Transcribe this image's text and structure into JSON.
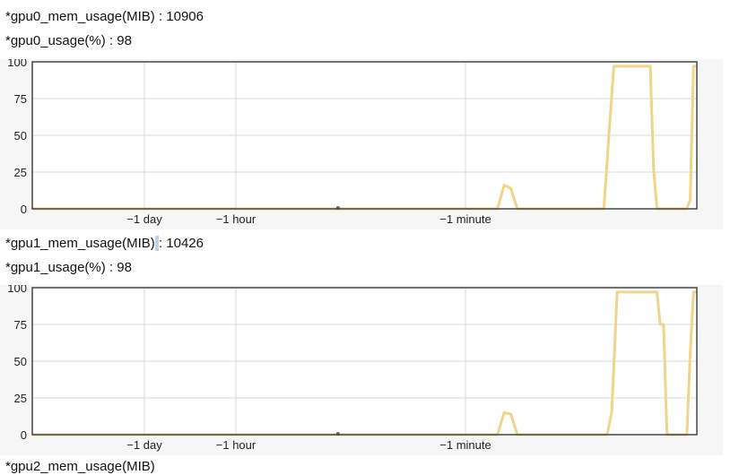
{
  "stats": {
    "gpu0_mem": "*gpu0_mem_usage(MIB) : 10906",
    "gpu0_usage": "*gpu0_usage(%) : 98",
    "gpu1_mem_a": "*gpu1_mem_usage(MIB)",
    "gpu1_mem_sel": " ",
    "gpu1_mem_b": ": 10426",
    "gpu1_usage": "*gpu1_usage(%) : 98",
    "gpu2_cut": "*gpu2_mem_usage(MIB)"
  },
  "colors": {
    "series": "#f0d48a",
    "series_dark": "#e2c06a",
    "grid": "#d8d8d8",
    "frame": "#444444"
  },
  "chart_data": [
    {
      "type": "line",
      "series_name": "gpu0_usage",
      "ylim": [
        0,
        100
      ],
      "yticks": [
        "0",
        "25",
        "50",
        "75",
        "100"
      ],
      "xtick_labels": [
        "−1 day",
        "−1 hour",
        "−1 minute"
      ],
      "grid": true,
      "points": [
        [
          0,
          0
        ],
        [
          0.7,
          0
        ],
        [
          0.71,
          16
        ],
        [
          0.72,
          14
        ],
        [
          0.73,
          0
        ],
        [
          0.86,
          0
        ],
        [
          0.87,
          65
        ],
        [
          0.875,
          97
        ],
        [
          0.93,
          97
        ],
        [
          0.935,
          27
        ],
        [
          0.94,
          0
        ],
        [
          0.985,
          0
        ],
        [
          0.99,
          6
        ],
        [
          0.995,
          97
        ],
        [
          1.0,
          97
        ]
      ]
    },
    {
      "type": "line",
      "series_name": "gpu1_usage",
      "ylim": [
        0,
        100
      ],
      "yticks": [
        "0",
        "25",
        "50",
        "75",
        "100"
      ],
      "xtick_labels": [
        "−1 day",
        "−1 hour",
        "−1 minute"
      ],
      "grid": true,
      "points": [
        [
          0,
          0
        ],
        [
          0.7,
          0
        ],
        [
          0.71,
          15
        ],
        [
          0.72,
          14
        ],
        [
          0.73,
          0
        ],
        [
          0.865,
          0
        ],
        [
          0.872,
          16
        ],
        [
          0.88,
          97
        ],
        [
          0.94,
          97
        ],
        [
          0.945,
          75
        ],
        [
          0.95,
          75
        ],
        [
          0.955,
          0
        ],
        [
          0.985,
          0
        ],
        [
          0.99,
          55
        ],
        [
          0.995,
          97
        ],
        [
          1.0,
          97
        ]
      ]
    }
  ]
}
